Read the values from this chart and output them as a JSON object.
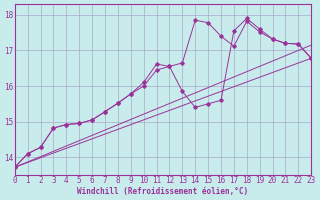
{
  "xlabel": "Windchill (Refroidissement éolien,°C)",
  "bg_color": "#c8ecec",
  "line_color": "#993399",
  "grid_color": "#aaaacc",
  "xlim": [
    0,
    23
  ],
  "ylim": [
    13.5,
    18.3
  ],
  "xticks": [
    0,
    1,
    2,
    3,
    4,
    5,
    6,
    7,
    8,
    9,
    10,
    11,
    12,
    13,
    14,
    15,
    16,
    17,
    18,
    19,
    20,
    21,
    22,
    23
  ],
  "yticks": [
    14,
    15,
    16,
    17,
    18
  ],
  "line1_x": [
    0,
    1,
    2,
    3,
    4,
    5,
    6,
    7,
    8,
    9,
    10,
    11,
    12,
    13,
    14,
    15,
    16,
    17,
    18,
    19,
    20,
    21,
    22,
    23
  ],
  "line1_y": [
    13.72,
    14.1,
    14.28,
    14.82,
    14.92,
    14.95,
    15.05,
    15.28,
    15.52,
    15.78,
    16.1,
    16.62,
    16.55,
    15.85,
    15.4,
    15.5,
    15.6,
    17.55,
    17.9,
    17.6,
    17.32,
    17.2,
    17.18,
    16.78
  ],
  "line2_x": [
    0,
    1,
    2,
    3,
    4,
    5,
    6,
    7,
    8,
    9,
    10,
    11,
    12,
    13,
    14,
    15,
    16,
    17,
    18,
    19,
    20,
    21,
    22,
    23
  ],
  "line2_y": [
    13.72,
    14.1,
    14.28,
    14.82,
    14.92,
    14.95,
    15.05,
    15.28,
    15.52,
    15.78,
    16.0,
    16.45,
    16.55,
    16.65,
    17.85,
    17.78,
    17.4,
    17.12,
    17.82,
    17.52,
    17.32,
    17.2,
    17.18,
    16.78
  ],
  "line3_x": [
    0,
    23
  ],
  "line3_y": [
    13.72,
    17.15
  ],
  "line4_x": [
    0,
    23
  ],
  "line4_y": [
    13.72,
    16.78
  ]
}
